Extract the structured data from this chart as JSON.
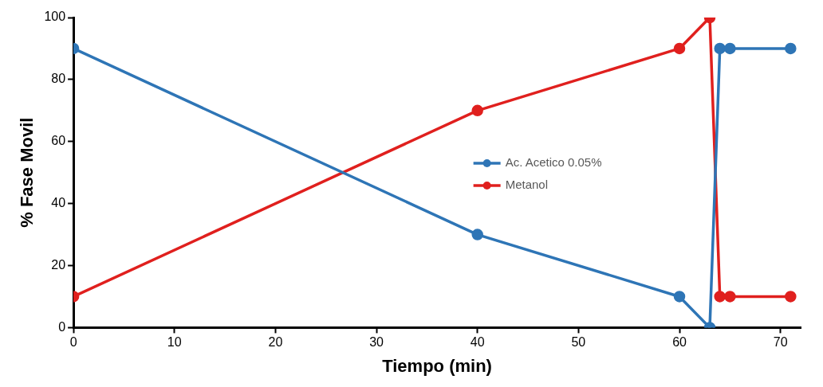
{
  "chart_data": {
    "type": "line",
    "xlabel": "Tiempo (min)",
    "ylabel": "% Fase Movil",
    "xlim": [
      0,
      72
    ],
    "xticks": [
      0,
      10,
      20,
      30,
      40,
      50,
      60,
      70
    ],
    "ylim": [
      0,
      100
    ],
    "yticks": [
      0,
      20,
      40,
      60,
      80,
      100
    ],
    "grid": false,
    "legend": "right",
    "marker": "circle",
    "line_style": "solid",
    "series": [
      {
        "name": "Ac. Acetico 0.05%",
        "color": "#2e75b6",
        "x": [
          0,
          40,
          60,
          63,
          64,
          65,
          71
        ],
        "values": [
          90,
          30,
          10,
          0,
          90,
          90,
          90
        ]
      },
      {
        "name": "Metanol",
        "color": "#e0201e",
        "x": [
          0,
          40,
          60,
          63,
          64,
          65,
          71
        ],
        "values": [
          10,
          70,
          90,
          100,
          10,
          10,
          10
        ]
      }
    ]
  }
}
